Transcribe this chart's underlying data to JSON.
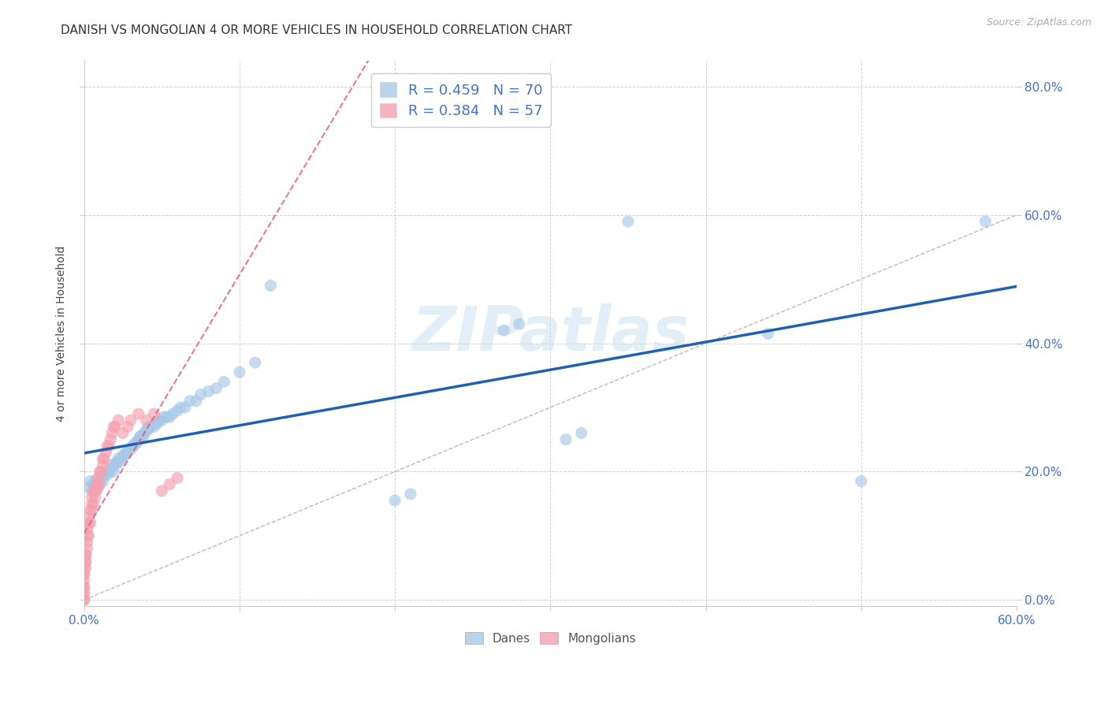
{
  "title": "DANISH VS MONGOLIAN 4 OR MORE VEHICLES IN HOUSEHOLD CORRELATION CHART",
  "source": "Source: ZipAtlas.com",
  "ylabel_text": "4 or more Vehicles in Household",
  "xlim": [
    0.0,
    0.6
  ],
  "ylim": [
    -0.01,
    0.84
  ],
  "xtick_positions": [
    0.0,
    0.1,
    0.2,
    0.3,
    0.4,
    0.5,
    0.6
  ],
  "xtick_labels_show": [
    "0.0%",
    "",
    "",
    "",
    "",
    "",
    "60.0%"
  ],
  "ytick_positions": [
    0.0,
    0.2,
    0.4,
    0.6,
    0.8
  ],
  "ytick_labels": [
    "0.0%",
    "20.0%",
    "40.0%",
    "60.0%",
    "80.0%"
  ],
  "danes_color": "#a8c8e8",
  "mongolians_color": "#f4a0b0",
  "danes_line_color": "#2060b0",
  "mongolians_line_color": "#e06080",
  "danes_R": 0.459,
  "danes_N": 70,
  "mongolians_R": 0.384,
  "mongolians_N": 57,
  "danes_x": [
    0.003,
    0.004,
    0.005,
    0.006,
    0.007,
    0.008,
    0.009,
    0.01,
    0.011,
    0.012,
    0.013,
    0.014,
    0.015,
    0.016,
    0.017,
    0.018,
    0.019,
    0.02,
    0.021,
    0.022,
    0.023,
    0.024,
    0.025,
    0.026,
    0.027,
    0.028,
    0.03,
    0.031,
    0.032,
    0.033,
    0.034,
    0.035,
    0.036,
    0.037,
    0.038,
    0.039,
    0.04,
    0.041,
    0.042,
    0.043,
    0.045,
    0.047,
    0.048,
    0.05,
    0.051,
    0.053,
    0.055,
    0.057,
    0.06,
    0.062,
    0.065,
    0.068,
    0.072,
    0.075,
    0.08,
    0.085,
    0.09,
    0.1,
    0.11,
    0.12,
    0.2,
    0.21,
    0.27,
    0.28,
    0.31,
    0.32,
    0.35,
    0.44,
    0.5,
    0.58
  ],
  "danes_y": [
    0.175,
    0.185,
    0.17,
    0.18,
    0.185,
    0.18,
    0.175,
    0.185,
    0.19,
    0.185,
    0.195,
    0.2,
    0.195,
    0.2,
    0.205,
    0.21,
    0.2,
    0.21,
    0.215,
    0.22,
    0.215,
    0.22,
    0.225,
    0.225,
    0.23,
    0.23,
    0.235,
    0.24,
    0.24,
    0.245,
    0.245,
    0.25,
    0.255,
    0.255,
    0.255,
    0.26,
    0.265,
    0.265,
    0.27,
    0.27,
    0.27,
    0.275,
    0.28,
    0.28,
    0.285,
    0.285,
    0.285,
    0.29,
    0.295,
    0.3,
    0.3,
    0.31,
    0.31,
    0.32,
    0.325,
    0.33,
    0.34,
    0.355,
    0.37,
    0.49,
    0.155,
    0.165,
    0.42,
    0.43,
    0.25,
    0.26,
    0.59,
    0.415,
    0.185,
    0.59
  ],
  "mongolians_x": [
    0.0,
    0.0,
    0.0,
    0.0,
    0.0,
    0.0,
    0.0,
    0.0,
    0.0,
    0.0,
    0.001,
    0.001,
    0.001,
    0.001,
    0.001,
    0.002,
    0.002,
    0.002,
    0.002,
    0.003,
    0.003,
    0.003,
    0.004,
    0.004,
    0.005,
    0.005,
    0.005,
    0.006,
    0.006,
    0.007,
    0.007,
    0.008,
    0.008,
    0.009,
    0.01,
    0.01,
    0.011,
    0.012,
    0.012,
    0.013,
    0.014,
    0.015,
    0.016,
    0.017,
    0.018,
    0.019,
    0.02,
    0.022,
    0.025,
    0.028,
    0.03,
    0.035,
    0.04,
    0.045,
    0.05,
    0.055,
    0.06
  ],
  "mongolians_y": [
    0.0,
    0.0,
    0.01,
    0.01,
    0.02,
    0.02,
    0.03,
    0.04,
    0.04,
    0.05,
    0.05,
    0.06,
    0.06,
    0.07,
    0.07,
    0.08,
    0.09,
    0.1,
    0.11,
    0.1,
    0.12,
    0.13,
    0.12,
    0.14,
    0.14,
    0.15,
    0.16,
    0.15,
    0.17,
    0.16,
    0.17,
    0.17,
    0.18,
    0.19,
    0.18,
    0.2,
    0.2,
    0.21,
    0.22,
    0.22,
    0.23,
    0.24,
    0.24,
    0.25,
    0.26,
    0.27,
    0.27,
    0.28,
    0.26,
    0.27,
    0.28,
    0.29,
    0.28,
    0.29,
    0.17,
    0.18,
    0.19
  ],
  "watermark_text": "ZIPatlas",
  "background_color": "#ffffff",
  "grid_color": "#cccccc",
  "tick_label_color": "#4472c4"
}
